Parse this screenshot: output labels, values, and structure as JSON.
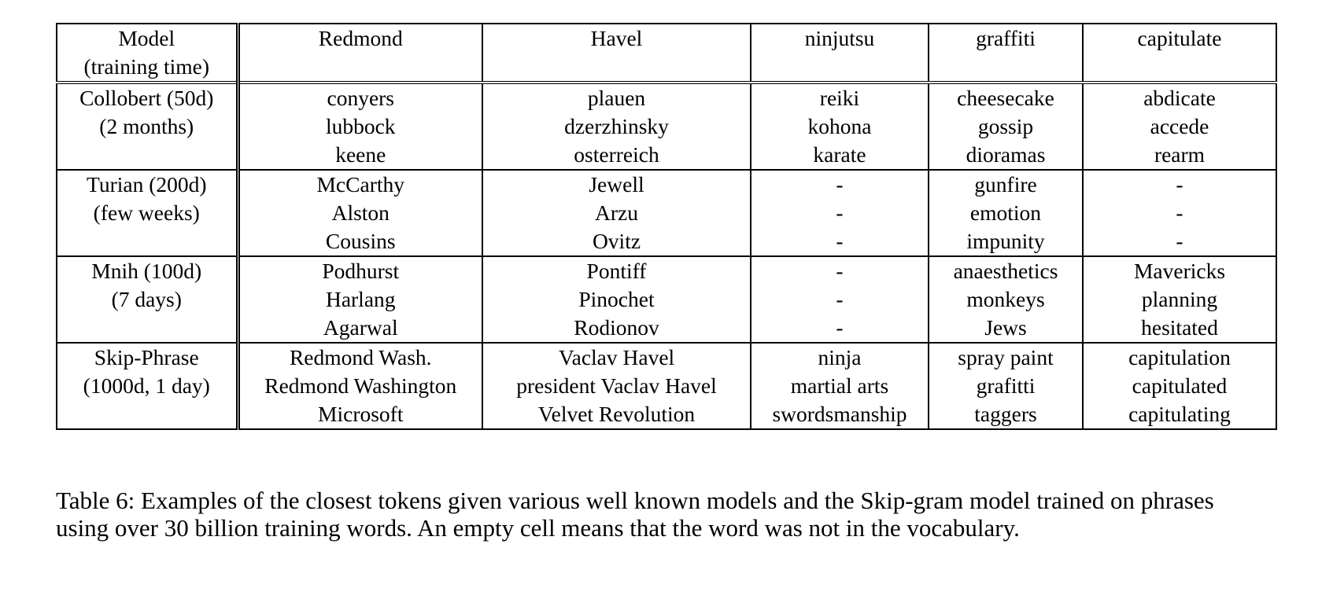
{
  "table": {
    "header": {
      "model": [
        "Model",
        "(training time)"
      ],
      "columns": [
        "Redmond",
        "Havel",
        "ninjutsu",
        "graffiti",
        "capitulate"
      ]
    },
    "rows": [
      {
        "model": [
          "Collobert (50d)",
          "(2 months)",
          ""
        ],
        "cells": [
          [
            "conyers",
            "lubbock",
            "keene"
          ],
          [
            "plauen",
            "dzerzhinsky",
            "osterreich"
          ],
          [
            "reiki",
            "kohona",
            "karate"
          ],
          [
            "cheesecake",
            "gossip",
            "dioramas"
          ],
          [
            "abdicate",
            "accede",
            "rearm"
          ]
        ]
      },
      {
        "model": [
          "Turian (200d)",
          "(few weeks)",
          ""
        ],
        "cells": [
          [
            "McCarthy",
            "Alston",
            "Cousins"
          ],
          [
            "Jewell",
            "Arzu",
            "Ovitz"
          ],
          [
            "-",
            "-",
            "-"
          ],
          [
            "gunfire",
            "emotion",
            "impunity"
          ],
          [
            "-",
            "-",
            "-"
          ]
        ]
      },
      {
        "model": [
          "Mnih (100d)",
          "(7 days)",
          ""
        ],
        "cells": [
          [
            "Podhurst",
            "Harlang",
            "Agarwal"
          ],
          [
            "Pontiff",
            "Pinochet",
            "Rodionov"
          ],
          [
            "-",
            "-",
            "-"
          ],
          [
            "anaesthetics",
            "monkeys",
            "Jews"
          ],
          [
            "Mavericks",
            "planning",
            "hesitated"
          ]
        ]
      },
      {
        "model": [
          "Skip-Phrase",
          "(1000d, 1 day)",
          ""
        ],
        "cells": [
          [
            "Redmond Wash.",
            "Redmond Washington",
            "Microsoft"
          ],
          [
            "Vaclav Havel",
            "president Vaclav Havel",
            "Velvet Revolution"
          ],
          [
            "ninja",
            "martial arts",
            "swordsmanship"
          ],
          [
            "spray paint",
            "grafitti",
            "taggers"
          ],
          [
            "capitulation",
            "capitulated",
            "capitulating"
          ]
        ]
      }
    ]
  },
  "caption": {
    "label": "Table 6:",
    "text": "Examples of the closest tokens given various well known models and the Skip-gram model trained on phrases using over 30 billion training words. An empty cell means that the word was not in the vocabulary."
  }
}
